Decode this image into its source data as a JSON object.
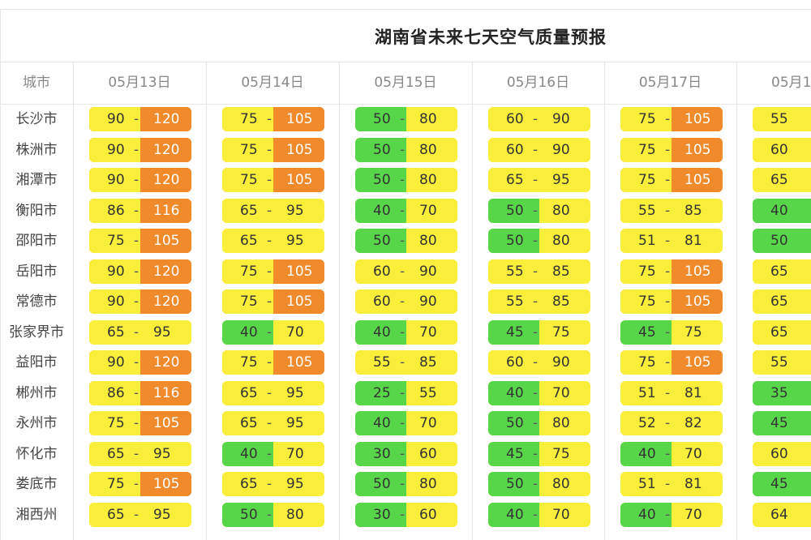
{
  "title": "湖南省未来七天空气质量预报",
  "header": {
    "city": "城市",
    "dates": [
      "05月13日",
      "05月14日",
      "05月15日",
      "05月16日",
      "05月17日",
      "05月1"
    ]
  },
  "separator": "-",
  "legend_colors": {
    "green": "#58d64a",
    "yellow": "#f9ef3b",
    "orange": "#f08a2a"
  },
  "rows": [
    {
      "city": "长沙市",
      "cells": [
        {
          "lo": "90",
          "hi": "120",
          "lc": "yellow",
          "hc": "orange"
        },
        {
          "lo": "75",
          "hi": "105",
          "lc": "yellow",
          "hc": "orange"
        },
        {
          "lo": "50",
          "hi": "80",
          "lc": "green",
          "hc": "yellow"
        },
        {
          "lo": "60",
          "hi": "90",
          "lc": "yellow",
          "hc": "yellow"
        },
        {
          "lo": "75",
          "hi": "105",
          "lc": "yellow",
          "hc": "orange"
        },
        {
          "lo": "55",
          "lc": "yellow"
        }
      ]
    },
    {
      "city": "株洲市",
      "cells": [
        {
          "lo": "90",
          "hi": "120",
          "lc": "yellow",
          "hc": "orange"
        },
        {
          "lo": "75",
          "hi": "105",
          "lc": "yellow",
          "hc": "orange"
        },
        {
          "lo": "50",
          "hi": "80",
          "lc": "green",
          "hc": "yellow"
        },
        {
          "lo": "60",
          "hi": "90",
          "lc": "yellow",
          "hc": "yellow"
        },
        {
          "lo": "75",
          "hi": "105",
          "lc": "yellow",
          "hc": "orange"
        },
        {
          "lo": "60",
          "lc": "yellow"
        }
      ]
    },
    {
      "city": "湘潭市",
      "cells": [
        {
          "lo": "90",
          "hi": "120",
          "lc": "yellow",
          "hc": "orange"
        },
        {
          "lo": "75",
          "hi": "105",
          "lc": "yellow",
          "hc": "orange"
        },
        {
          "lo": "50",
          "hi": "80",
          "lc": "green",
          "hc": "yellow"
        },
        {
          "lo": "65",
          "hi": "95",
          "lc": "yellow",
          "hc": "yellow"
        },
        {
          "lo": "75",
          "hi": "105",
          "lc": "yellow",
          "hc": "orange"
        },
        {
          "lo": "65",
          "lc": "yellow"
        }
      ]
    },
    {
      "city": "衡阳市",
      "cells": [
        {
          "lo": "86",
          "hi": "116",
          "lc": "yellow",
          "hc": "orange"
        },
        {
          "lo": "65",
          "hi": "95",
          "lc": "yellow",
          "hc": "yellow"
        },
        {
          "lo": "40",
          "hi": "70",
          "lc": "green",
          "hc": "yellow"
        },
        {
          "lo": "50",
          "hi": "80",
          "lc": "green",
          "hc": "yellow"
        },
        {
          "lo": "55",
          "hi": "85",
          "lc": "yellow",
          "hc": "yellow"
        },
        {
          "lo": "40",
          "lc": "green"
        }
      ]
    },
    {
      "city": "邵阳市",
      "cells": [
        {
          "lo": "75",
          "hi": "105",
          "lc": "yellow",
          "hc": "orange"
        },
        {
          "lo": "65",
          "hi": "95",
          "lc": "yellow",
          "hc": "yellow"
        },
        {
          "lo": "50",
          "hi": "80",
          "lc": "green",
          "hc": "yellow"
        },
        {
          "lo": "50",
          "hi": "80",
          "lc": "green",
          "hc": "yellow"
        },
        {
          "lo": "51",
          "hi": "81",
          "lc": "yellow",
          "hc": "yellow"
        },
        {
          "lo": "50",
          "lc": "green"
        }
      ]
    },
    {
      "city": "岳阳市",
      "cells": [
        {
          "lo": "90",
          "hi": "120",
          "lc": "yellow",
          "hc": "orange"
        },
        {
          "lo": "75",
          "hi": "105",
          "lc": "yellow",
          "hc": "orange"
        },
        {
          "lo": "60",
          "hi": "90",
          "lc": "yellow",
          "hc": "yellow"
        },
        {
          "lo": "55",
          "hi": "85",
          "lc": "yellow",
          "hc": "yellow"
        },
        {
          "lo": "75",
          "hi": "105",
          "lc": "yellow",
          "hc": "orange"
        },
        {
          "lo": "65",
          "lc": "yellow"
        }
      ]
    },
    {
      "city": "常德市",
      "cells": [
        {
          "lo": "90",
          "hi": "120",
          "lc": "yellow",
          "hc": "orange"
        },
        {
          "lo": "75",
          "hi": "105",
          "lc": "yellow",
          "hc": "orange"
        },
        {
          "lo": "60",
          "hi": "90",
          "lc": "yellow",
          "hc": "yellow"
        },
        {
          "lo": "55",
          "hi": "85",
          "lc": "yellow",
          "hc": "yellow"
        },
        {
          "lo": "75",
          "hi": "105",
          "lc": "yellow",
          "hc": "orange"
        },
        {
          "lo": "65",
          "lc": "yellow"
        }
      ]
    },
    {
      "city": "张家界市",
      "cells": [
        {
          "lo": "65",
          "hi": "95",
          "lc": "yellow",
          "hc": "yellow"
        },
        {
          "lo": "40",
          "hi": "70",
          "lc": "green",
          "hc": "yellow"
        },
        {
          "lo": "40",
          "hi": "70",
          "lc": "green",
          "hc": "yellow"
        },
        {
          "lo": "45",
          "hi": "75",
          "lc": "green",
          "hc": "yellow"
        },
        {
          "lo": "45",
          "hi": "75",
          "lc": "green",
          "hc": "yellow"
        },
        {
          "lo": "65",
          "lc": "yellow"
        }
      ]
    },
    {
      "city": "益阳市",
      "cells": [
        {
          "lo": "90",
          "hi": "120",
          "lc": "yellow",
          "hc": "orange"
        },
        {
          "lo": "75",
          "hi": "105",
          "lc": "yellow",
          "hc": "orange"
        },
        {
          "lo": "55",
          "hi": "85",
          "lc": "yellow",
          "hc": "yellow"
        },
        {
          "lo": "60",
          "hi": "90",
          "lc": "yellow",
          "hc": "yellow"
        },
        {
          "lo": "75",
          "hi": "105",
          "lc": "yellow",
          "hc": "orange"
        },
        {
          "lo": "55",
          "lc": "yellow"
        }
      ]
    },
    {
      "city": "郴州市",
      "cells": [
        {
          "lo": "86",
          "hi": "116",
          "lc": "yellow",
          "hc": "orange"
        },
        {
          "lo": "65",
          "hi": "95",
          "lc": "yellow",
          "hc": "yellow"
        },
        {
          "lo": "25",
          "hi": "55",
          "lc": "green",
          "hc": "yellow"
        },
        {
          "lo": "40",
          "hi": "70",
          "lc": "green",
          "hc": "yellow"
        },
        {
          "lo": "51",
          "hi": "81",
          "lc": "yellow",
          "hc": "yellow"
        },
        {
          "lo": "35",
          "lc": "green"
        }
      ]
    },
    {
      "city": "永州市",
      "cells": [
        {
          "lo": "75",
          "hi": "105",
          "lc": "yellow",
          "hc": "orange"
        },
        {
          "lo": "65",
          "hi": "95",
          "lc": "yellow",
          "hc": "yellow"
        },
        {
          "lo": "40",
          "hi": "70",
          "lc": "green",
          "hc": "yellow"
        },
        {
          "lo": "50",
          "hi": "80",
          "lc": "green",
          "hc": "yellow"
        },
        {
          "lo": "52",
          "hi": "82",
          "lc": "yellow",
          "hc": "yellow"
        },
        {
          "lo": "45",
          "lc": "green"
        }
      ]
    },
    {
      "city": "怀化市",
      "cells": [
        {
          "lo": "65",
          "hi": "95",
          "lc": "yellow",
          "hc": "yellow"
        },
        {
          "lo": "40",
          "hi": "70",
          "lc": "green",
          "hc": "yellow"
        },
        {
          "lo": "30",
          "hi": "60",
          "lc": "green",
          "hc": "yellow"
        },
        {
          "lo": "45",
          "hi": "75",
          "lc": "green",
          "hc": "yellow"
        },
        {
          "lo": "40",
          "hi": "70",
          "lc": "green",
          "hc": "yellow"
        },
        {
          "lo": "60",
          "lc": "yellow"
        }
      ]
    },
    {
      "city": "娄底市",
      "cells": [
        {
          "lo": "75",
          "hi": "105",
          "lc": "yellow",
          "hc": "orange"
        },
        {
          "lo": "65",
          "hi": "95",
          "lc": "yellow",
          "hc": "yellow"
        },
        {
          "lo": "50",
          "hi": "80",
          "lc": "green",
          "hc": "yellow"
        },
        {
          "lo": "50",
          "hi": "80",
          "lc": "green",
          "hc": "yellow"
        },
        {
          "lo": "51",
          "hi": "81",
          "lc": "yellow",
          "hc": "yellow"
        },
        {
          "lo": "45",
          "lc": "green"
        }
      ]
    },
    {
      "city": "湘西州",
      "cells": [
        {
          "lo": "65",
          "hi": "95",
          "lc": "yellow",
          "hc": "yellow"
        },
        {
          "lo": "50",
          "hi": "80",
          "lc": "green",
          "hc": "yellow"
        },
        {
          "lo": "30",
          "hi": "60",
          "lc": "green",
          "hc": "yellow"
        },
        {
          "lo": "40",
          "hi": "70",
          "lc": "green",
          "hc": "yellow"
        },
        {
          "lo": "40",
          "hi": "70",
          "lc": "green",
          "hc": "yellow"
        },
        {
          "lo": "64",
          "lc": "yellow"
        }
      ]
    }
  ]
}
